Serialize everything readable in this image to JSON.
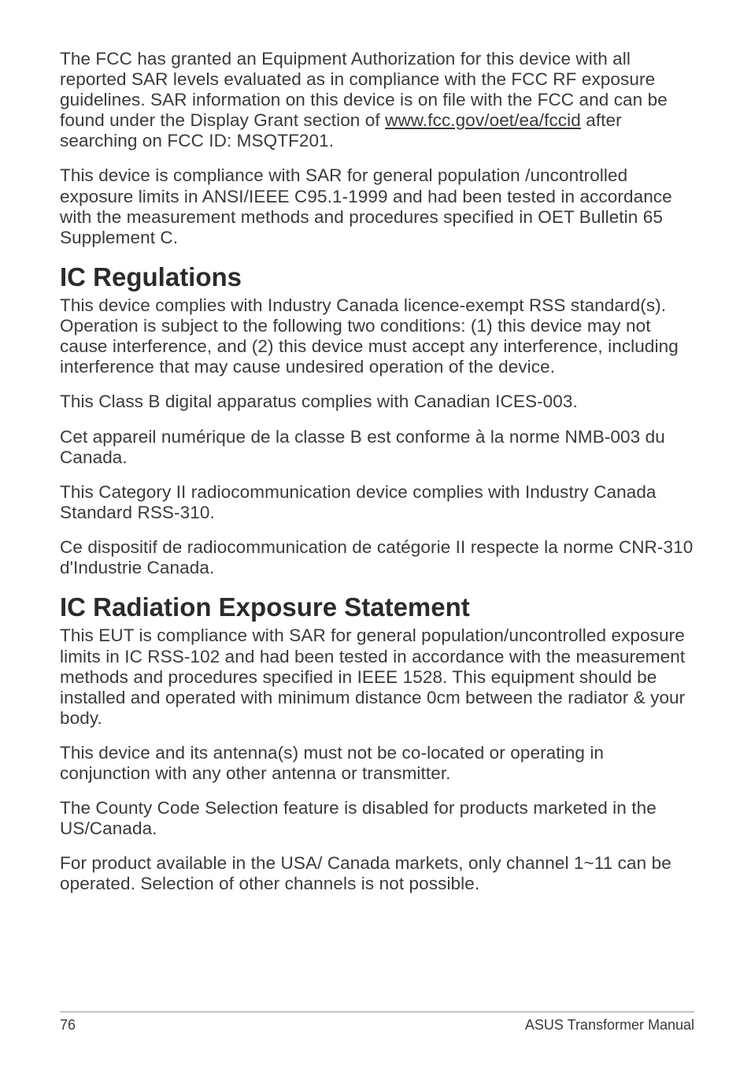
{
  "paragraphs": {
    "p1a": "The FCC has granted an Equipment Authorization for this device with all reported SAR levels evaluated as in compliance with the FCC RF exposure guidelines. SAR information on this device is on file with the FCC and can be found under the Display Grant section of ",
    "p1link": "www.fcc.gov/oet/ea/fccid",
    "p1b": " after searching on FCC ID: MSQTF201.",
    "p2": "This device is compliance with SAR for general population /uncontrolled exposure limits in ANSI/IEEE C95.1-1999 and had been tested in accordance with the measurement methods and procedures specified in OET Bulletin 65 Supplement C.",
    "h2a": "IC Regulations",
    "p3": "This device complies with Industry Canada licence-exempt RSS standard(s). Operation is subject to the following two conditions: (1) this device may not cause interference, and (2) this device must accept any interference, including interference that may cause undesired operation of the device.",
    "p4": "This Class B digital apparatus complies with Canadian ICES-003.",
    "p5": "Cet appareil numérique de la classe B est conforme à la norme NMB-003 du Canada.",
    "p6": "This Category II radiocommunication device complies with Industry Canada Standard RSS-310.",
    "p7": "Ce dispositif de radiocommunication de catégorie II respecte la norme CNR-310 d'Industrie Canada.",
    "h2b": "IC Radiation Exposure Statement",
    "p8": "This EUT is compliance with SAR for general population/uncontrolled exposure limits in IC RSS-102 and had been tested in accordance with the measurement methods and procedures specified in IEEE 1528. This equipment should be installed and operated with minimum distance 0cm between the radiator & your body.",
    "p9": "This device and its antenna(s) must not be co-located or operating in conjunction with any other antenna or transmitter.",
    "p10": "The County Code Selection feature is disabled for products marketed in the US/Canada.",
    "p11": "For product available in the USA/ Canada markets, only channel 1~11 can be operated. Selection of other channels is not possible."
  },
  "footer": {
    "page": "76",
    "title": "ASUS Transformer Manual"
  }
}
